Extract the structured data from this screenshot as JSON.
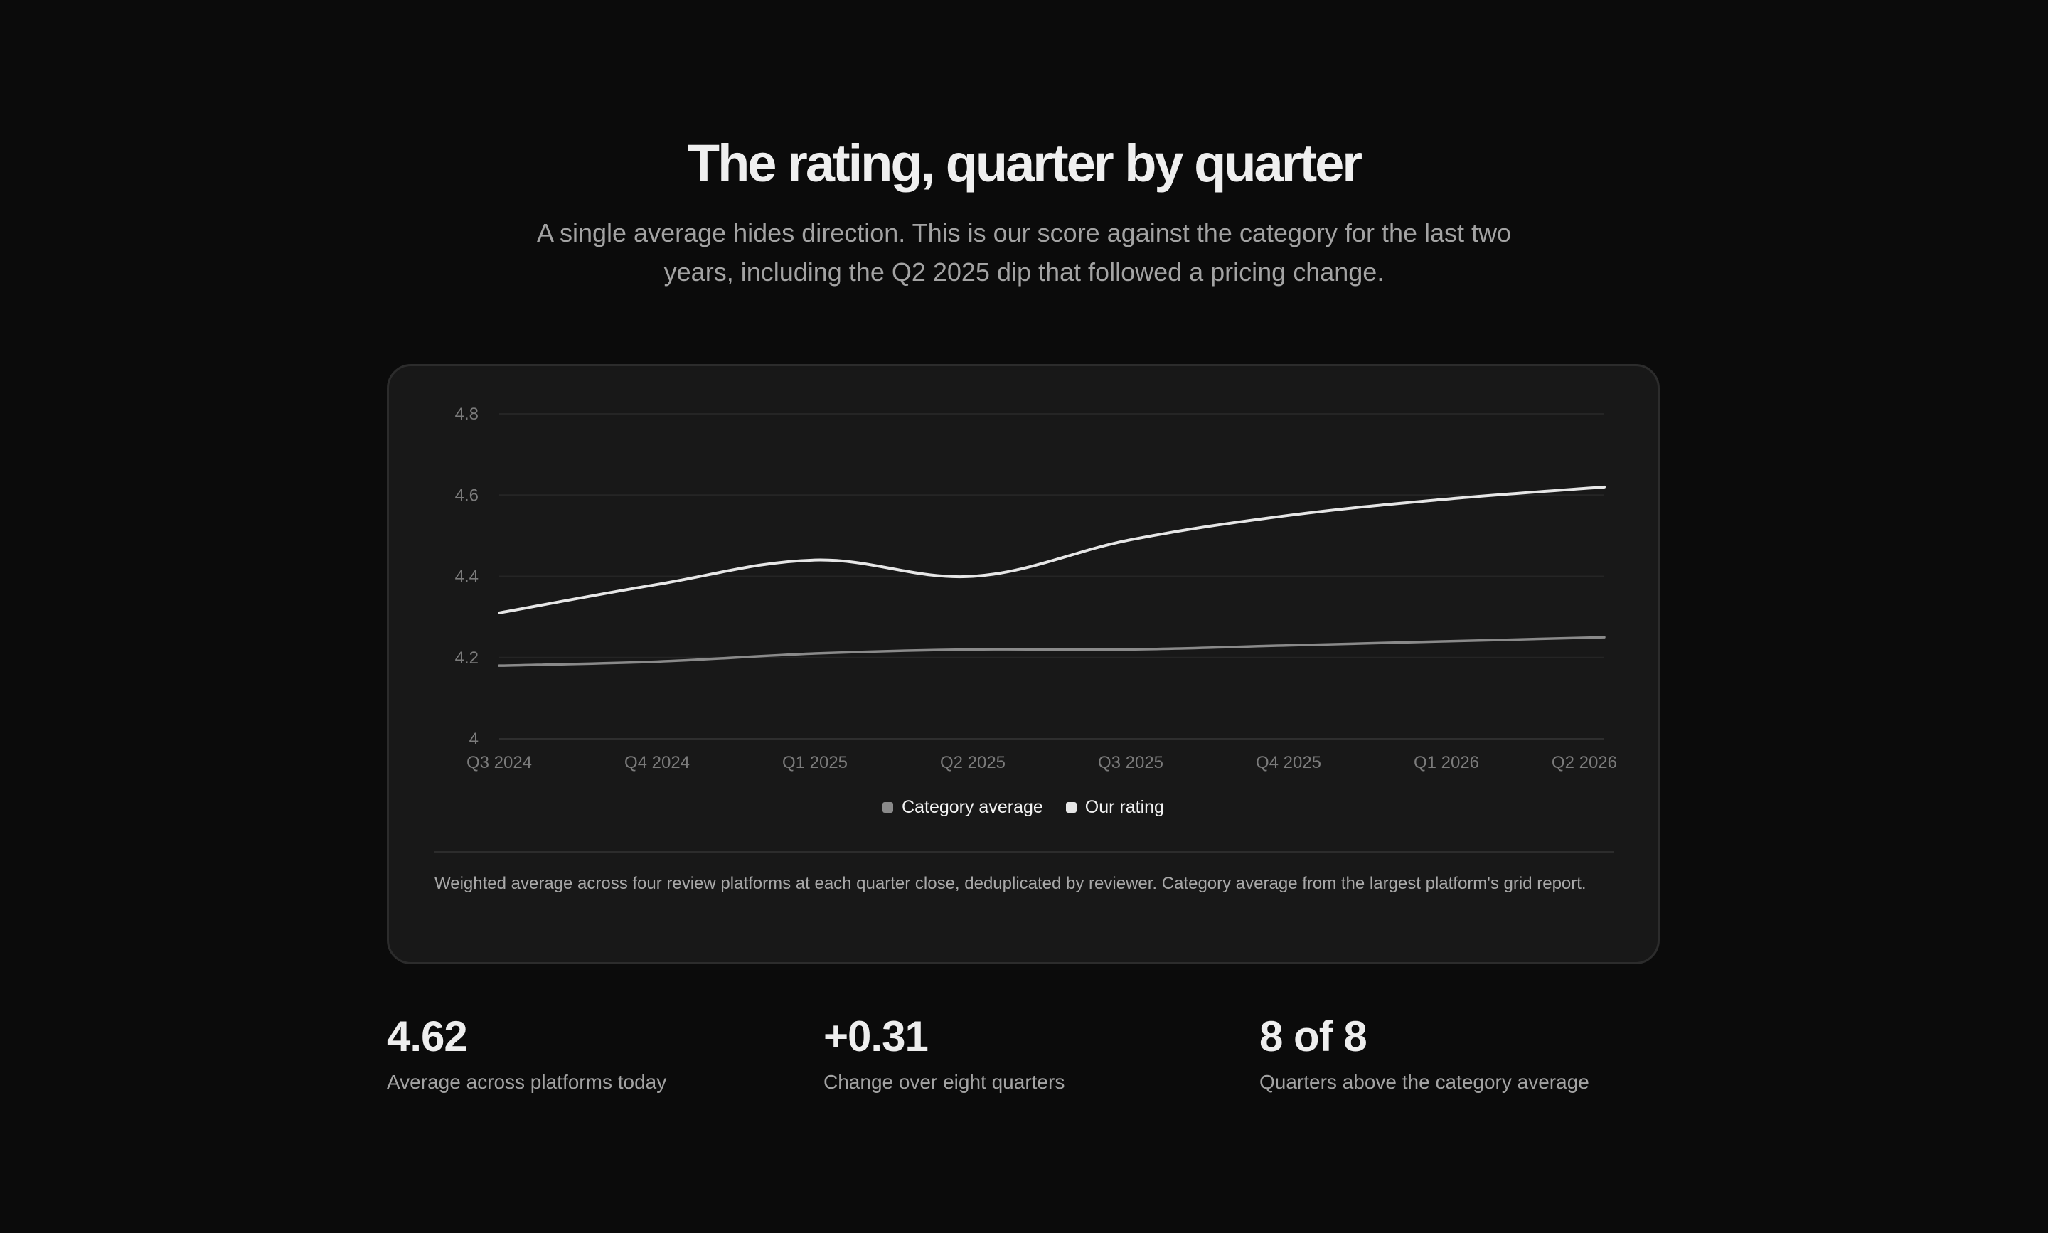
{
  "header": {
    "title": "The rating, quarter by quarter",
    "subtitle": "A single average hides direction. This is our score against the category for the last two years, including the Q2 2025 dip that followed a pricing change."
  },
  "chart_data": {
    "type": "line",
    "x": [
      "Q3 2024",
      "Q4 2024",
      "Q1 2025",
      "Q2 2025",
      "Q3 2025",
      "Q4 2025",
      "Q1 2026",
      "Q2 2026"
    ],
    "ylim": [
      4,
      4.8
    ],
    "yticks": [
      "4",
      "4.2",
      "4.4",
      "4.6",
      "4.8"
    ],
    "grid": true,
    "legend_position": "bottom-center",
    "series": [
      {
        "name": "Category average",
        "color": "#8a8a8a",
        "values": [
          4.18,
          4.19,
          4.21,
          4.22,
          4.22,
          4.23,
          4.24,
          4.25
        ]
      },
      {
        "name": "Our rating",
        "color": "#e6e6e6",
        "values": [
          4.31,
          4.38,
          4.44,
          4.4,
          4.49,
          4.55,
          4.59,
          4.62
        ]
      }
    ]
  },
  "footnote": "Weighted average across four review platforms at each quarter close, deduplicated by reviewer. Category average from the largest platform's grid report.",
  "stats": [
    {
      "value": "4.62",
      "label": "Average across platforms today"
    },
    {
      "value": "+0.31",
      "label": "Change over eight quarters"
    },
    {
      "value": "8 of 8",
      "label": "Quarters above the category average"
    }
  ]
}
